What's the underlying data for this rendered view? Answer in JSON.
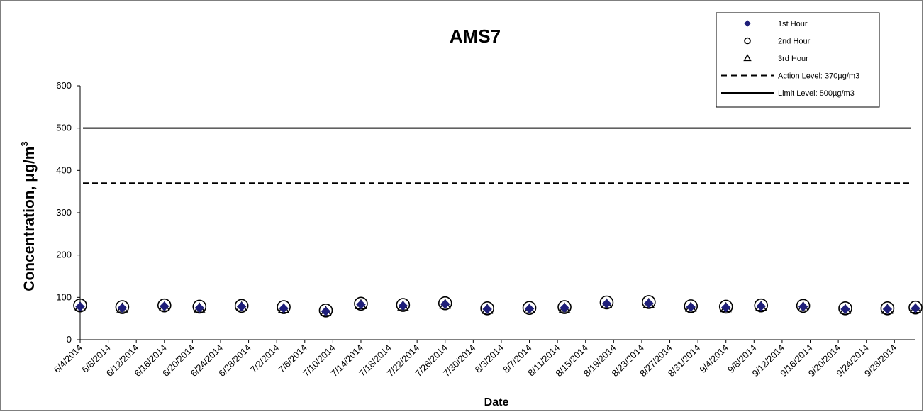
{
  "chart_data": {
    "type": "scatter",
    "title": "AMS7",
    "xlabel": "Date",
    "ylabel": "Concentration,  μg/m",
    "ylabel_superscript": "3",
    "ylim": [
      0,
      600
    ],
    "y_ticks": [
      "0",
      "100",
      "200",
      "300",
      "400",
      "500",
      "600"
    ],
    "xlim": [
      "6/4/2014",
      "10/1/2014"
    ],
    "x_tick_labels": [
      "6/4/2014",
      "6/8/2014",
      "6/12/2014",
      "6/16/2014",
      "6/20/2014",
      "6/24/2014",
      "6/28/2014",
      "7/2/2014",
      "7/6/2014",
      "7/10/2014",
      "7/14/2014",
      "7/18/2014",
      "7/22/2014",
      "7/26/2014",
      "7/30/2014",
      "8/3/2014",
      "8/7/2014",
      "8/11/2014",
      "8/15/2014",
      "8/19/2014",
      "8/23/2014",
      "8/27/2014",
      "8/31/2014",
      "9/4/2014",
      "9/8/2014",
      "9/12/2014",
      "9/16/2014",
      "9/20/2014",
      "9/24/2014",
      "9/28/2014"
    ],
    "x": [
      "6/4/2014",
      "6/10/2014",
      "6/16/2014",
      "6/21/2014",
      "6/27/2014",
      "7/3/2014",
      "7/9/2014",
      "7/14/2014",
      "7/20/2014",
      "7/26/2014",
      "8/1/2014",
      "8/7/2014",
      "8/12/2014",
      "8/18/2014",
      "8/24/2014",
      "8/30/2014",
      "9/4/2014",
      "9/9/2014",
      "9/15/2014",
      "9/21/2014",
      "9/27/2014",
      "10/1/2014"
    ],
    "series": [
      {
        "name": "1st Hour",
        "marker": "diamond",
        "color": "#1f1f7a",
        "values": [
          78,
          75,
          79,
          75,
          78,
          74,
          67,
          83,
          80,
          84,
          72,
          73,
          75,
          85,
          86,
          77,
          76,
          79,
          78,
          72,
          72,
          74
        ]
      },
      {
        "name": "2nd Hour",
        "marker": "circle",
        "color": "#000000",
        "values": [
          81,
          77,
          81,
          78,
          80,
          77,
          69,
          85,
          82,
          86,
          74,
          75,
          77,
          88,
          89,
          79,
          78,
          81,
          80,
          74,
          74,
          76
        ]
      },
      {
        "name": "3rd Hour",
        "marker": "triangle",
        "color": "#000000",
        "values": [
          77,
          74,
          77,
          74,
          77,
          73,
          66,
          82,
          79,
          83,
          71,
          72,
          74,
          84,
          85,
          76,
          75,
          78,
          77,
          71,
          71,
          73
        ]
      }
    ],
    "reference_lines": [
      {
        "name": "Action Level: 370µg/m3",
        "value": 370,
        "style": "dashed",
        "color": "#000000"
      },
      {
        "name": "Limit Level: 500µg/m3",
        "value": 500,
        "style": "solid",
        "color": "#000000"
      }
    ],
    "legend_placement": "top-right",
    "grid": false
  }
}
